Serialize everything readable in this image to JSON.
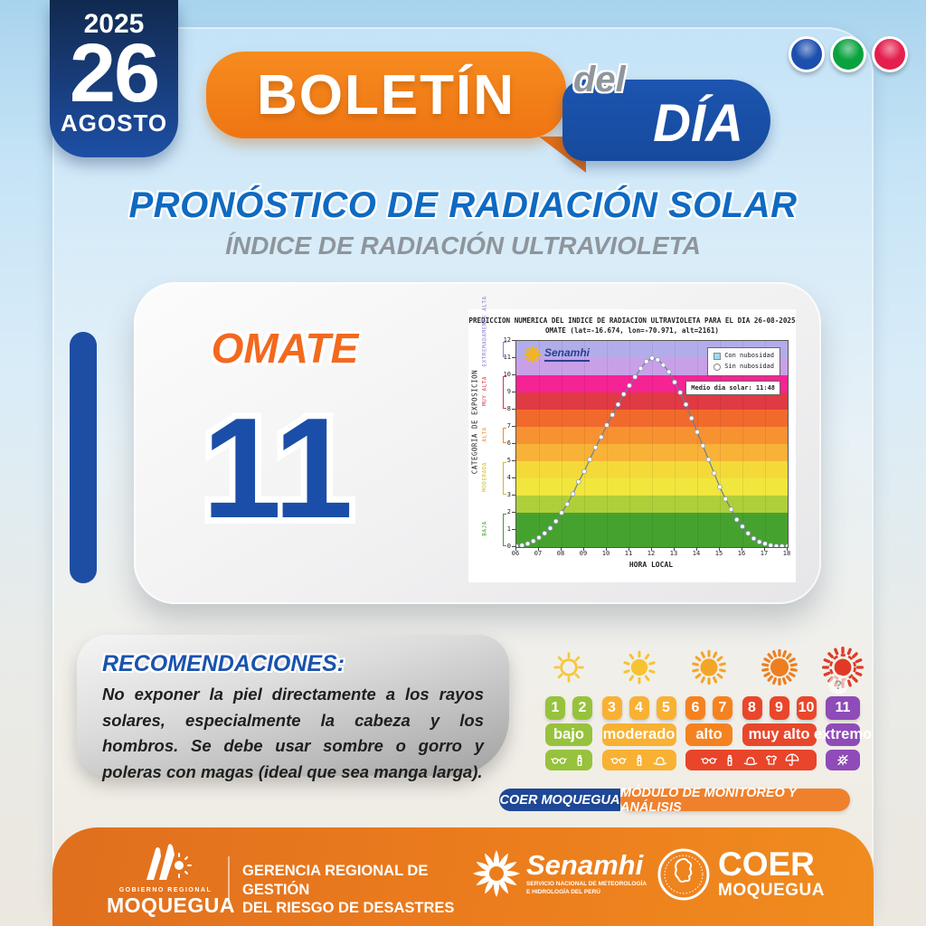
{
  "traffic_lights": [
    {
      "name": "blue",
      "color": "#1d4fae"
    },
    {
      "name": "green",
      "color": "#0aa23f"
    },
    {
      "name": "red",
      "color": "#e41f4e"
    }
  ],
  "date_badge": {
    "year": "2025",
    "day": "26",
    "month": "AGOSTO"
  },
  "header": {
    "title": "BOLETÍN",
    "tag_small": "del",
    "tag_big": "DÍA"
  },
  "titles": {
    "main": "PRONÓSTICO DE RADIACIÓN SOLAR",
    "sub": "ÍNDICE DE RADIACIÓN ULTRAVIOLETA"
  },
  "station": {
    "name": "OMATE",
    "uv_value": "11"
  },
  "chart_data": {
    "type": "line",
    "title": "PREDICCION NUMERICA DEL INDICE DE RADIACION ULTRAVIOLETA PARA EL DIA 26-08-2025",
    "subtitle": "OMATE (lat=-16.674, lon=-70.971, alt=2161)",
    "xlabel": "HORA LOCAL",
    "ylabel": "CATEGORIA DE EXPOSICION",
    "xlim": [
      6,
      18
    ],
    "ylim": [
      0,
      12
    ],
    "x_ticks": [
      "06",
      "07",
      "08",
      "09",
      "10",
      "11",
      "12",
      "13",
      "14",
      "15",
      "16",
      "17",
      "18"
    ],
    "y_ticks": [
      "0",
      "1",
      "2",
      "3",
      "4",
      "5",
      "6",
      "7",
      "8",
      "9",
      "10",
      "11",
      "12"
    ],
    "grid": true,
    "legend_position": "top-right",
    "legend": [
      {
        "label": "Con nubosidad",
        "marker": "square",
        "marker_color": "#9bdcee"
      },
      {
        "label": "Sin nubosidad",
        "marker": "circle",
        "marker_color": "#ffffff"
      }
    ],
    "annotation": "Medio dia solar: 11:48",
    "watermark": "Senamhi",
    "bands": [
      {
        "from": 0,
        "to": 2,
        "color": "#46a22f"
      },
      {
        "from": 2,
        "to": 3,
        "color": "#aecf3a"
      },
      {
        "from": 3,
        "to": 4,
        "color": "#f1e63d"
      },
      {
        "from": 4,
        "to": 5,
        "color": "#f4da39"
      },
      {
        "from": 5,
        "to": 6,
        "color": "#f9b238"
      },
      {
        "from": 6,
        "to": 7,
        "color": "#f79231"
      },
      {
        "from": 7,
        "to": 8,
        "color": "#f16a2c"
      },
      {
        "from": 8,
        "to": 9,
        "color": "#e03a44"
      },
      {
        "from": 9,
        "to": 10,
        "color": "#f52394"
      },
      {
        "from": 10,
        "to": 11,
        "color": "#c9a0e8"
      },
      {
        "from": 11,
        "to": 12,
        "color": "#b2adea"
      }
    ],
    "category_labels": [
      {
        "label": "BAJA",
        "from": 0,
        "to": 2,
        "color": "#3f9e2e"
      },
      {
        "label": "MODERADA",
        "from": 3,
        "to": 5,
        "color": "#cdb92e"
      },
      {
        "label": "ALTA",
        "from": 6,
        "to": 7,
        "color": "#f08c28"
      },
      {
        "label": "MUY ALTA",
        "from": 8,
        "to": 10,
        "color": "#d8344c"
      },
      {
        "label": "EXTREMADAMENTE ALTA",
        "from": 11,
        "to": 12,
        "color": "#8b7fd6"
      }
    ],
    "series": [
      {
        "name": "Sin nubosidad",
        "line_color": "#6b7f96",
        "marker_color": "#ffffff",
        "x": [
          6,
          6.25,
          6.5,
          6.75,
          7,
          7.25,
          7.5,
          7.75,
          8,
          8.25,
          8.5,
          8.75,
          9,
          9.25,
          9.5,
          9.75,
          10,
          10.25,
          10.5,
          10.75,
          11,
          11.25,
          11.5,
          11.75,
          12,
          12.25,
          12.5,
          12.75,
          13,
          13.25,
          13.5,
          13.75,
          14,
          14.25,
          14.5,
          14.75,
          15,
          15.25,
          15.5,
          15.75,
          16,
          16.25,
          16.5,
          16.75,
          17,
          17.25,
          17.5,
          17.75,
          18
        ],
        "y": [
          0.05,
          0.1,
          0.2,
          0.35,
          0.55,
          0.8,
          1.1,
          1.5,
          2,
          2.5,
          3.1,
          3.8,
          4.4,
          5.1,
          5.8,
          6.4,
          7.1,
          7.7,
          8.3,
          8.9,
          9.4,
          9.9,
          10.4,
          10.8,
          11,
          10.9,
          10.6,
          10.2,
          9.6,
          9,
          8.3,
          7.5,
          6.7,
          5.9,
          5.1,
          4.3,
          3.5,
          2.8,
          2.2,
          1.6,
          1.2,
          0.8,
          0.5,
          0.3,
          0.2,
          0.1,
          0.05,
          0.05,
          0.05
        ]
      }
    ]
  },
  "recommendations": {
    "title": "RECOMENDACIONES:",
    "body": "No exponer la piel directamente a los rayos solares, especialmente la cabeza y los hombros. Se debe usar sombre o gorro y poleras con magas (ideal que sea manga larga)."
  },
  "uv_scale": {
    "suns": [
      {
        "name": "sun-low",
        "color": "#f6c73c",
        "rays": 8,
        "filled": false,
        "dashed": false,
        "size": 40
      },
      {
        "name": "sun-moderate",
        "color": "#f7c331",
        "rays": 10,
        "filled": true,
        "dashed": false,
        "size": 44
      },
      {
        "name": "sun-high",
        "color": "#f3a52a",
        "rays": 14,
        "filled": true,
        "dashed": false,
        "size": 46
      },
      {
        "name": "sun-very-high",
        "color": "#ee7e1f",
        "rays": 18,
        "filled": true,
        "dashed": false,
        "size": 48
      },
      {
        "name": "sun-extreme",
        "color": "#e03a26",
        "rays": 16,
        "filled": true,
        "dashed": true,
        "size": 50
      }
    ],
    "groups": [
      {
        "label": "bajo",
        "color": "#97c23d",
        "numbers": [
          "1",
          "2"
        ],
        "icons": [
          "sunglasses",
          "sunscreen"
        ]
      },
      {
        "label": "moderado",
        "color": "#f8b133",
        "numbers": [
          "3",
          "4",
          "5"
        ],
        "icons": [
          "sunglasses",
          "sunscreen",
          "hat"
        ]
      },
      {
        "label": "alto",
        "color": "#f58220",
        "numbers": [
          "6",
          "7"
        ],
        "icons": []
      },
      {
        "label": "muy alto",
        "color": "#e8472b",
        "numbers": [
          "8",
          "9",
          "10"
        ],
        "icons": []
      },
      {
        "label": "extremo",
        "color": "#8f4bb8",
        "numbers": [
          "11"
        ],
        "icons": [
          "no-sun"
        ]
      }
    ],
    "protection_bar": {
      "color": "#e8452a",
      "icons": [
        "sunglasses",
        "sunscreen",
        "hat",
        "shirt",
        "umbrella"
      ]
    },
    "help_mark": "?"
  },
  "badges": {
    "left": "COER MOQUEGUA",
    "right": "MÓDULO DE MONITOREO Y ANÁLISIS"
  },
  "footer": {
    "gobierno": {
      "small": "GOBIERNO REGIONAL",
      "name": "MOQUEGUA"
    },
    "gerencia_line1": "GERENCIA REGIONAL DE GESTIÓN",
    "gerencia_line2": "DEL RIESGO DE DESASTRES",
    "senamhi": {
      "name": "Senamhi",
      "sub1": "SERVICIO NACIONAL DE METEOROLOGÍA",
      "sub2": "E HIDROLOGÍA DEL PERÚ"
    },
    "coer": {
      "name": "COER",
      "region": "MOQUEGUA"
    }
  }
}
